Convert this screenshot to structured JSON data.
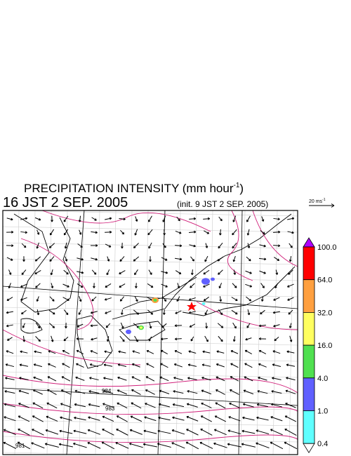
{
  "header": {
    "title": "PRECIPITATION INTENSITY (mm hour",
    "title_superscript": "-1",
    "title_close": ")",
    "valid_time": "16 JST 2 SEP. 2005",
    "init_time": "(init. 9 JST 2 SEP. 2005)"
  },
  "wind_scale": {
    "label": "20 ms",
    "superscript": "-1"
  },
  "colorbar": {
    "labels": [
      "100.0",
      "64.0",
      "32.0",
      "16.0",
      "4.0",
      "1.0",
      "0.4"
    ],
    "colors": [
      "#ff0000",
      "#ffa040",
      "#ffff60",
      "#50e050",
      "#6060ff",
      "#60ffff"
    ],
    "over_color": "#b000ff",
    "under_color": "#ffffff"
  },
  "isobar_labels": [
    "984",
    "983",
    "981"
  ]
}
